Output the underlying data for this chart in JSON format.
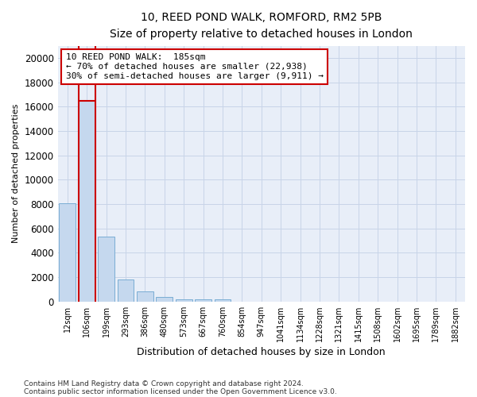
{
  "title1": "10, REED POND WALK, ROMFORD, RM2 5PB",
  "title2": "Size of property relative to detached houses in London",
  "xlabel": "Distribution of detached houses by size in London",
  "ylabel": "Number of detached properties",
  "categories": [
    "12sqm",
    "106sqm",
    "199sqm",
    "293sqm",
    "386sqm",
    "480sqm",
    "573sqm",
    "667sqm",
    "760sqm",
    "854sqm",
    "947sqm",
    "1041sqm",
    "1134sqm",
    "1228sqm",
    "1321sqm",
    "1415sqm",
    "1508sqm",
    "1602sqm",
    "1695sqm",
    "1789sqm",
    "1882sqm"
  ],
  "values": [
    8100,
    16500,
    5300,
    1800,
    800,
    350,
    200,
    200,
    150,
    0,
    0,
    0,
    0,
    0,
    0,
    0,
    0,
    0,
    0,
    0,
    0
  ],
  "bar_color": "#c5d8ee",
  "bar_edge_color": "#7aadd4",
  "highlight_bar_index": 1,
  "highlight_edge_color": "#cc0000",
  "ylim": [
    0,
    21000
  ],
  "yticks": [
    0,
    2000,
    4000,
    6000,
    8000,
    10000,
    12000,
    14000,
    16000,
    18000,
    20000
  ],
  "annotation_text": "10 REED POND WALK:  185sqm\n← 70% of detached houses are smaller (22,938)\n30% of semi-detached houses are larger (9,911) →",
  "annotation_box_color": "#ffffff",
  "annotation_box_edge": "#cc0000",
  "footer1": "Contains HM Land Registry data © Crown copyright and database right 2024.",
  "footer2": "Contains public sector information licensed under the Open Government Licence v3.0.",
  "grid_color": "#c8d4e8",
  "background_color": "#ffffff",
  "plot_bg_color": "#e8eef8"
}
